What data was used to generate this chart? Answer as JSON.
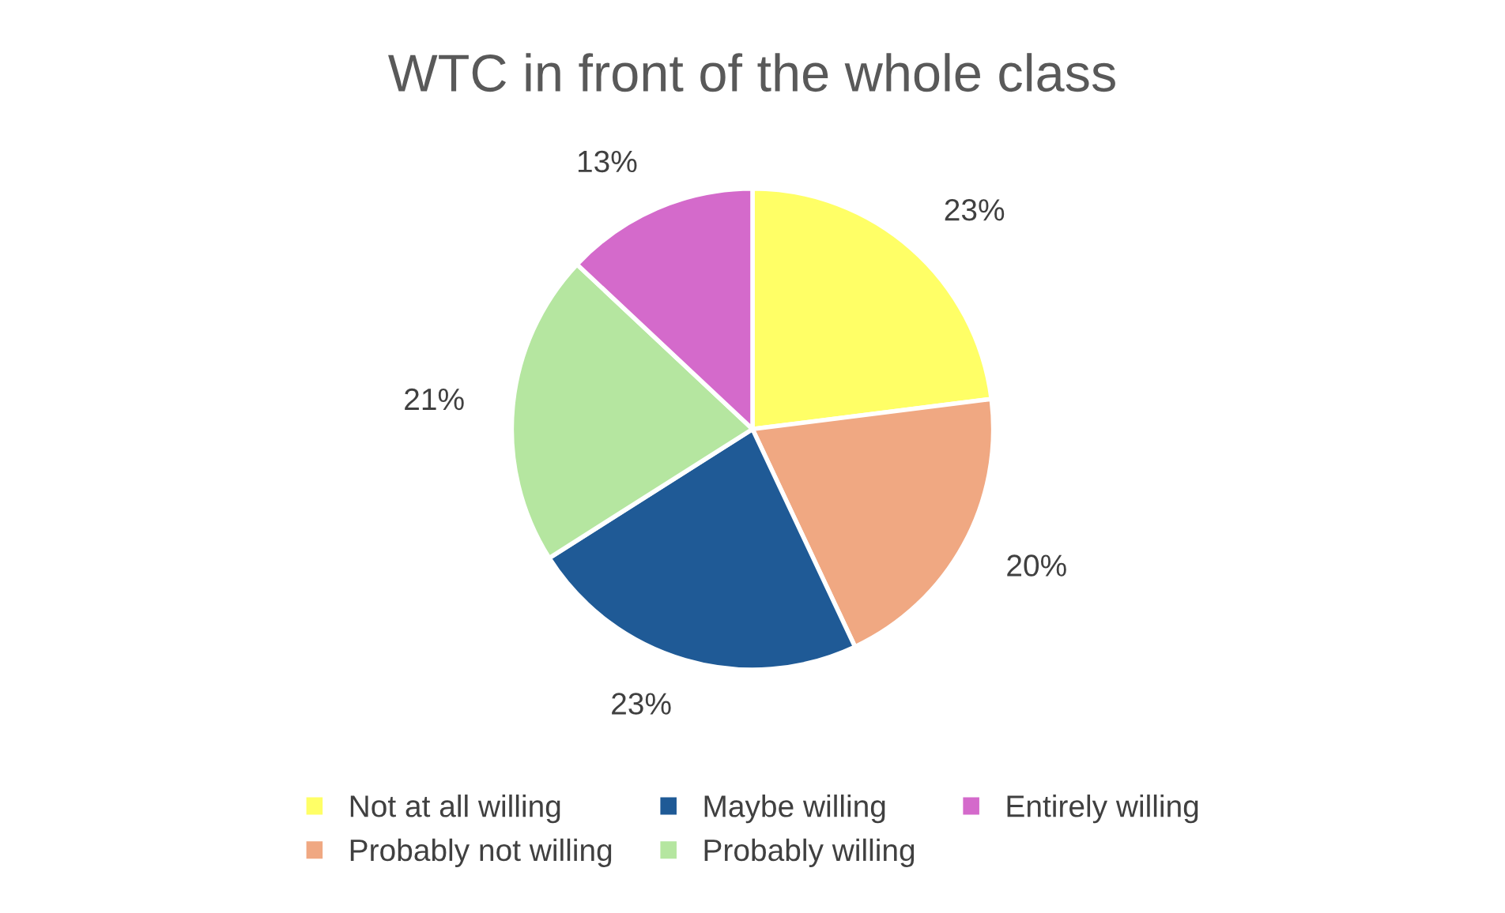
{
  "chart_data": {
    "type": "pie",
    "title": "WTC in front of the whole class",
    "categories": [
      "Not at all willing",
      "Probably not willing",
      "Maybe willing",
      "Probably willing",
      "Entirely willing"
    ],
    "values": [
      23,
      20,
      23,
      21,
      13
    ],
    "colors": [
      "#ffff66",
      "#f0a882",
      "#1f5a96",
      "#b5e6a0",
      "#d46acb"
    ],
    "value_labels": [
      "23%",
      "20%",
      "23%",
      "21%",
      "13%"
    ],
    "legend": "bottom"
  }
}
